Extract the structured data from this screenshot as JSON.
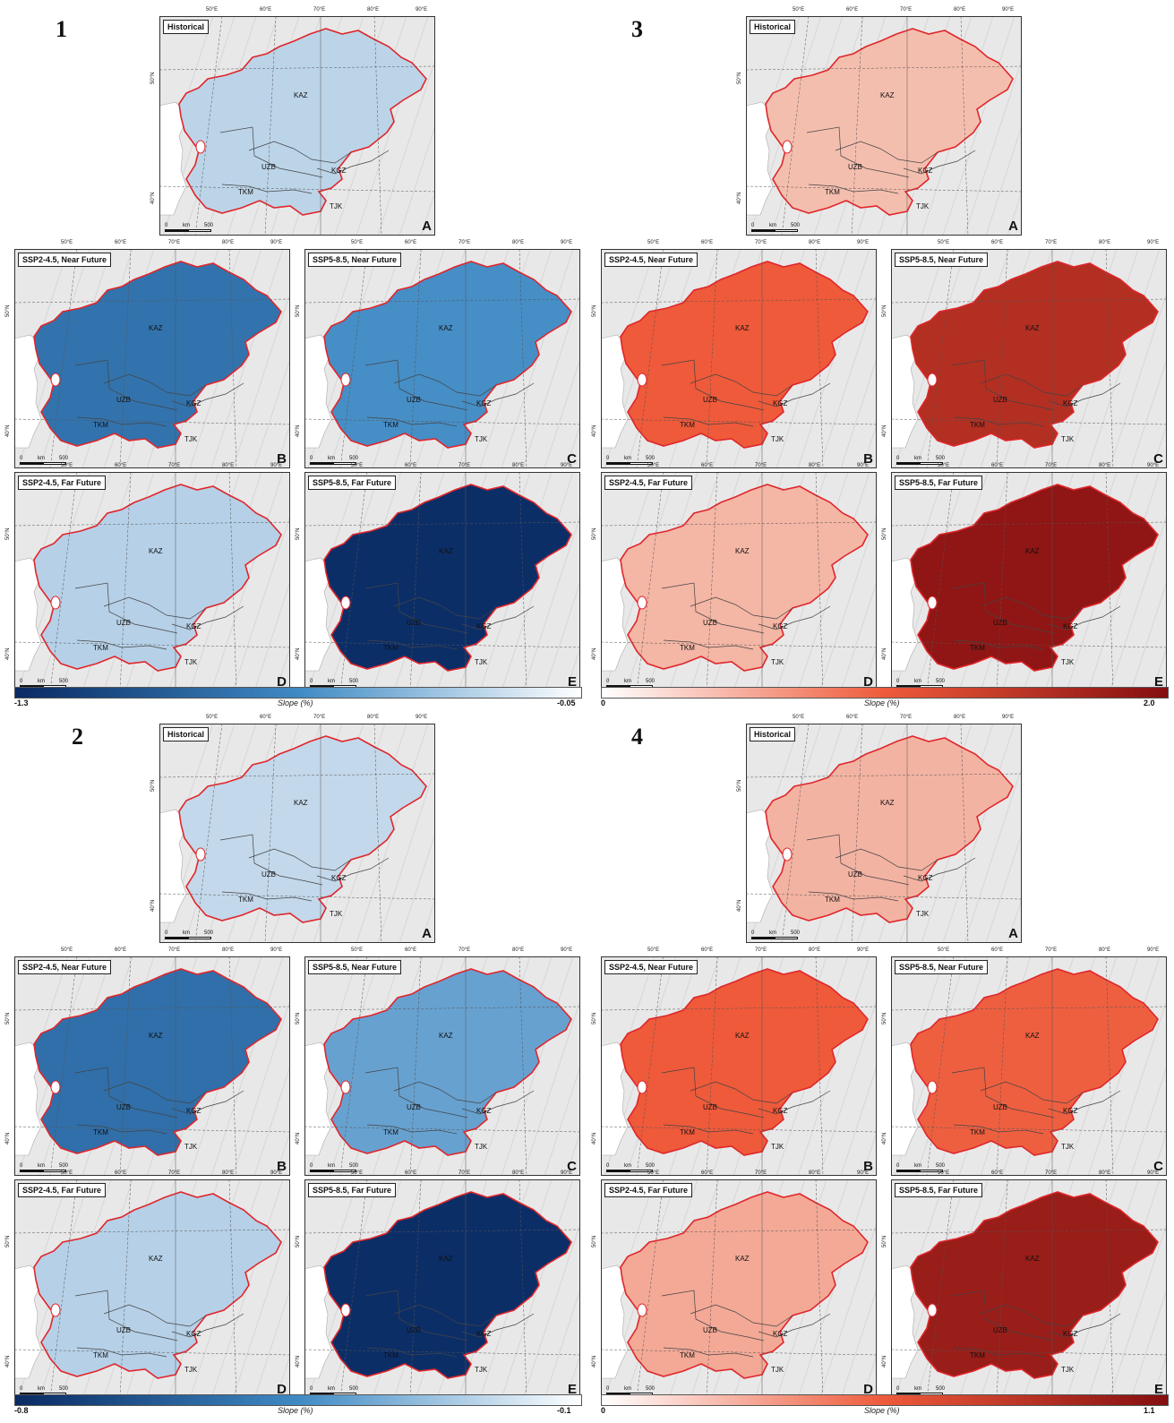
{
  "figure": {
    "groups": [
      {
        "number": "1",
        "scheme": "blue",
        "colorbar": {
          "min": "-1.3",
          "max": "-0.05",
          "title": "Slope (%)"
        },
        "panels": [
          {
            "title": "Historical",
            "letter": "A",
            "intensity": 0.12
          },
          {
            "title": "SSP2-4.5, Near Future",
            "letter": "B",
            "intensity": 0.62
          },
          {
            "title": "SSP5-8.5, Near Future",
            "letter": "C",
            "intensity": 0.48
          },
          {
            "title": "SSP2-4.5, Far Future",
            "letter": "D",
            "intensity": 0.14
          },
          {
            "title": "SSP5-8.5, Far Future",
            "letter": "E",
            "intensity": 0.98
          }
        ]
      },
      {
        "number": "3",
        "scheme": "red",
        "colorbar": {
          "min": "0",
          "max": "2.0",
          "title": "Slope (%)"
        },
        "panels": [
          {
            "title": "Historical",
            "letter": "A",
            "intensity": 0.12
          },
          {
            "title": "SSP2-4.5, Near Future",
            "letter": "B",
            "intensity": 0.5
          },
          {
            "title": "SSP5-8.5, Near Future",
            "letter": "C",
            "intensity": 0.78
          },
          {
            "title": "SSP2-4.5, Far Future",
            "letter": "D",
            "intensity": 0.15
          },
          {
            "title": "SSP5-8.5, Far Future",
            "letter": "E",
            "intensity": 0.95
          }
        ]
      },
      {
        "number": "2",
        "scheme": "blue",
        "colorbar": {
          "min": "-0.8",
          "max": "-0.1",
          "title": "Slope (%)"
        },
        "panels": [
          {
            "title": "Historical",
            "letter": "A",
            "intensity": 0.1
          },
          {
            "title": "SSP2-4.5, Near Future",
            "letter": "B",
            "intensity": 0.64
          },
          {
            "title": "SSP5-8.5, Near Future",
            "letter": "C",
            "intensity": 0.38
          },
          {
            "title": "SSP2-4.5, Far Future",
            "letter": "D",
            "intensity": 0.14
          },
          {
            "title": "SSP5-8.5, Far Future",
            "letter": "E",
            "intensity": 0.98
          }
        ]
      },
      {
        "number": "4",
        "scheme": "red",
        "colorbar": {
          "min": "0",
          "max": "1.1",
          "title": "Slope (%)"
        },
        "panels": [
          {
            "title": "Historical",
            "letter": "A",
            "intensity": 0.16
          },
          {
            "title": "SSP2-4.5, Near Future",
            "letter": "B",
            "intensity": 0.5
          },
          {
            "title": "SSP5-8.5, Near Future",
            "letter": "C",
            "intensity": 0.48
          },
          {
            "title": "SSP2-4.5, Far Future",
            "letter": "D",
            "intensity": 0.2
          },
          {
            "title": "SSP5-8.5, Far Future",
            "letter": "E",
            "intensity": 0.9
          }
        ]
      }
    ],
    "countries": [
      "KAZ",
      "UZB",
      "TKM",
      "KGZ",
      "TJK"
    ],
    "lon_labels": [
      "50°E",
      "60°E",
      "70°E",
      "80°E",
      "90°E"
    ],
    "lat_labels": [
      "50°N",
      "40°N"
    ],
    "scalebar": {
      "zero": "0",
      "unit": "km",
      "value": "500"
    }
  },
  "colors": {
    "blue_light": "#e4ebf4",
    "blue_mid": "#3f8ac4",
    "blue_dark": "#0a2a63",
    "red_light": "#f6ddd3",
    "red_mid": "#ee5a3a",
    "red_dark": "#840e10",
    "border_red": "#e0262b"
  }
}
